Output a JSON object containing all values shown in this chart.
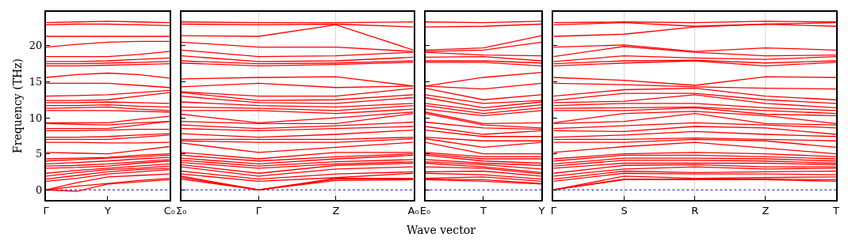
{
  "chart_data": [
    {
      "type": "line",
      "ylabel": "Frequency (THz)",
      "categories": [
        "Γ",
        null,
        "Y",
        null,
        "C₀"
      ],
      "ylim": [
        -1.4,
        24.7
      ],
      "yticks": [
        0,
        5,
        10,
        15,
        20
      ],
      "ref_lines": [
        {
          "axis": "y",
          "value": 0,
          "color": "#0000ff",
          "line_style": "dotted"
        }
      ],
      "series": [
        {
          "color": "#ff0000",
          "values": [
            0,
            -0.2,
            0.8,
            1.1,
            1.4
          ]
        },
        {
          "color": "#ff0000",
          "values": [
            0,
            0.5,
            0.9,
            1.3,
            1.6
          ]
        },
        {
          "color": "#ff0000",
          "values": [
            0,
            1.0,
            1.8,
            2.0,
            2.2
          ]
        },
        {
          "color": "#ff0000",
          "values": [
            1.2,
            1.6,
            2.2,
            2.5,
            2.8
          ]
        },
        {
          "color": "#ff0000",
          "values": [
            1.5,
            2.0,
            2.5,
            2.8,
            3.0
          ]
        },
        {
          "color": "#ff0000",
          "values": [
            1.9,
            2.4,
            2.8,
            3.0,
            3.3
          ]
        },
        {
          "color": "#ff0000",
          "values": [
            2.3,
            2.7,
            3.0,
            3.3,
            3.6
          ]
        },
        {
          "color": "#ff0000",
          "values": [
            3.0,
            3.1,
            3.3,
            3.7,
            4.0
          ]
        },
        {
          "color": "#ff0000",
          "values": [
            3.3,
            3.4,
            3.6,
            3.9,
            4.2
          ]
        },
        {
          "color": "#ff0000",
          "values": [
            3.6,
            3.8,
            4.0,
            4.3,
            4.5
          ]
        },
        {
          "color": "#ff0000",
          "values": [
            4.0,
            4.2,
            4.4,
            4.6,
            4.8
          ]
        },
        {
          "color": "#ff0000",
          "values": [
            4.3,
            4.4,
            4.5,
            4.8,
            5.0
          ]
        },
        {
          "color": "#ff0000",
          "values": [
            5.2,
            5.1,
            5.0,
            5.5,
            6.0
          ]
        },
        {
          "color": "#ff0000",
          "values": [
            6.6,
            6.6,
            6.5,
            6.5,
            6.6
          ]
        },
        {
          "color": "#ff0000",
          "values": [
            7.0,
            7.0,
            7.0,
            7.3,
            7.6
          ]
        },
        {
          "color": "#ff0000",
          "values": [
            7.3,
            7.3,
            7.4,
            7.6,
            7.8
          ]
        },
        {
          "color": "#ff0000",
          "values": [
            8.2,
            8.2,
            8.3,
            8.4,
            8.4
          ]
        },
        {
          "color": "#ff0000",
          "values": [
            8.5,
            8.5,
            8.5,
            9.0,
            9.5
          ]
        },
        {
          "color": "#ff0000",
          "values": [
            9.2,
            9.1,
            9.0,
            9.3,
            9.5
          ]
        },
        {
          "color": "#ff0000",
          "values": [
            9.3,
            9.3,
            9.3,
            9.8,
            10.2
          ]
        },
        {
          "color": "#ff0000",
          "values": [
            11.0,
            11.0,
            11.0,
            10.9,
            10.8
          ]
        },
        {
          "color": "#ff0000",
          "values": [
            11.3,
            11.4,
            11.5,
            11.2,
            11.0
          ]
        },
        {
          "color": "#ff0000",
          "values": [
            11.7,
            11.7,
            11.8,
            11.6,
            11.5
          ]
        },
        {
          "color": "#ff0000",
          "values": [
            12.1,
            12.1,
            12.2,
            12.1,
            12.0
          ]
        },
        {
          "color": "#ff0000",
          "values": [
            12.4,
            12.4,
            12.5,
            13.0,
            13.5
          ]
        },
        {
          "color": "#ff0000",
          "values": [
            13.0,
            13.1,
            13.2,
            13.5,
            13.8
          ]
        },
        {
          "color": "#ff0000",
          "values": [
            14.8,
            14.8,
            14.8,
            14.5,
            14.2
          ]
        },
        {
          "color": "#ff0000",
          "values": [
            15.6,
            16.0,
            16.2,
            16.0,
            15.5
          ]
        },
        {
          "color": "#ff0000",
          "values": [
            17.2,
            17.2,
            17.3,
            17.4,
            17.5
          ]
        },
        {
          "color": "#ff0000",
          "values": [
            17.5,
            17.5,
            17.6,
            17.7,
            17.8
          ]
        },
        {
          "color": "#ff0000",
          "values": [
            17.8,
            17.8,
            17.9,
            18.1,
            18.3
          ]
        },
        {
          "color": "#ff0000",
          "values": [
            18.5,
            18.5,
            18.5,
            18.8,
            19.2
          ]
        },
        {
          "color": "#ff0000",
          "values": [
            19.8,
            20.2,
            20.5,
            20.6,
            20.6
          ]
        },
        {
          "color": "#ff0000",
          "values": [
            21.3,
            21.3,
            21.3,
            21.3,
            21.3
          ]
        },
        {
          "color": "#ff0000",
          "values": [
            22.9,
            23.0,
            23.0,
            22.9,
            22.8
          ]
        },
        {
          "color": "#ff0000",
          "values": [
            23.2,
            23.3,
            23.4,
            23.3,
            23.2
          ]
        }
      ]
    },
    {
      "type": "line",
      "xlabel": "Wave vector",
      "categories": [
        "Σ₀",
        "Γ",
        "Z",
        "A₀"
      ],
      "ylim": [
        -1.4,
        24.7
      ],
      "yticks": [
        0,
        5,
        10,
        15,
        20
      ],
      "grid": "x",
      "tick_labels": "x",
      "ref_lines": [
        {
          "axis": "y",
          "value": 0,
          "color": "#0000ff",
          "line_style": "dotted"
        }
      ],
      "series": [
        {
          "color": "#ff0000",
          "values": [
            1.5,
            0,
            1.3,
            1.4
          ]
        },
        {
          "color": "#ff0000",
          "values": [
            1.7,
            0,
            1.5,
            1.5
          ]
        },
        {
          "color": "#ff0000",
          "values": [
            1.9,
            0,
            1.6,
            1.6
          ]
        },
        {
          "color": "#ff0000",
          "values": [
            2.2,
            1.2,
            1.7,
            2.3
          ]
        },
        {
          "color": "#ff0000",
          "values": [
            2.6,
            1.5,
            2.2,
            2.5
          ]
        },
        {
          "color": "#ff0000",
          "values": [
            3.2,
            1.9,
            2.9,
            3.2
          ]
        },
        {
          "color": "#ff0000",
          "values": [
            3.5,
            2.3,
            3.4,
            3.7
          ]
        },
        {
          "color": "#ff0000",
          "values": [
            3.8,
            3.0,
            3.6,
            3.9
          ]
        },
        {
          "color": "#ff0000",
          "values": [
            4.1,
            3.3,
            3.9,
            4.2
          ]
        },
        {
          "color": "#ff0000",
          "values": [
            4.4,
            3.6,
            4.3,
            4.8
          ]
        },
        {
          "color": "#ff0000",
          "values": [
            4.8,
            4.0,
            4.6,
            5.0
          ]
        },
        {
          "color": "#ff0000",
          "values": [
            5.2,
            4.3,
            5.2,
            5.2
          ]
        },
        {
          "color": "#ff0000",
          "values": [
            6.5,
            5.2,
            5.9,
            6.6
          ]
        },
        {
          "color": "#ff0000",
          "values": [
            6.8,
            6.6,
            6.6,
            7.1
          ]
        },
        {
          "color": "#ff0000",
          "values": [
            7.0,
            7.0,
            7.0,
            7.3
          ]
        },
        {
          "color": "#ff0000",
          "values": [
            7.8,
            7.3,
            7.7,
            8.3
          ]
        },
        {
          "color": "#ff0000",
          "values": [
            8.5,
            8.2,
            8.5,
            8.8
          ]
        },
        {
          "color": "#ff0000",
          "values": [
            9.0,
            8.5,
            8.9,
            9.4
          ]
        },
        {
          "color": "#ff0000",
          "values": [
            9.5,
            9.2,
            9.2,
            10.6
          ]
        },
        {
          "color": "#ff0000",
          "values": [
            10.5,
            9.3,
            10.0,
            10.8
          ]
        },
        {
          "color": "#ff0000",
          "values": [
            11.0,
            11.0,
            10.6,
            11.2
          ]
        },
        {
          "color": "#ff0000",
          "values": [
            11.5,
            11.3,
            11.0,
            11.7
          ]
        },
        {
          "color": "#ff0000",
          "values": [
            12.2,
            11.7,
            11.5,
            12.0
          ]
        },
        {
          "color": "#ff0000",
          "values": [
            13.0,
            12.1,
            12.0,
            12.8
          ]
        },
        {
          "color": "#ff0000",
          "values": [
            13.5,
            12.4,
            12.5,
            13.2
          ]
        },
        {
          "color": "#ff0000",
          "values": [
            13.6,
            13.0,
            13.0,
            14.1
          ]
        },
        {
          "color": "#ff0000",
          "values": [
            14.3,
            14.8,
            14.2,
            14.4
          ]
        },
        {
          "color": "#ff0000",
          "values": [
            15.4,
            15.6,
            15.7,
            14.4
          ]
        },
        {
          "color": "#ff0000",
          "values": [
            17.6,
            17.2,
            17.4,
            17.7
          ]
        },
        {
          "color": "#ff0000",
          "values": [
            17.9,
            17.5,
            17.6,
            17.9
          ]
        },
        {
          "color": "#ff0000",
          "values": [
            18.6,
            17.8,
            17.9,
            18.4
          ]
        },
        {
          "color": "#ff0000",
          "values": [
            19.4,
            18.5,
            18.6,
            19.1
          ]
        },
        {
          "color": "#ff0000",
          "values": [
            20.5,
            19.8,
            19.8,
            19.2
          ]
        },
        {
          "color": "#ff0000",
          "values": [
            21.4,
            21.3,
            22.9,
            19.4
          ]
        },
        {
          "color": "#ff0000",
          "values": [
            23.0,
            22.9,
            23.0,
            22.6
          ]
        },
        {
          "color": "#ff0000",
          "values": [
            23.3,
            23.2,
            23.2,
            23.3
          ]
        }
      ]
    },
    {
      "type": "line",
      "categories": [
        "E₀",
        "T",
        "Y"
      ],
      "ylim": [
        -1.4,
        24.7
      ],
      "yticks": [
        0,
        5,
        10,
        15,
        20
      ],
      "tick_labels": "x",
      "ref_lines": [
        {
          "axis": "y",
          "value": 0,
          "color": "#0000ff",
          "line_style": "dotted"
        }
      ],
      "series": [
        {
          "color": "#ff0000",
          "values": [
            1.4,
            1.2,
            0.8
          ]
        },
        {
          "color": "#ff0000",
          "values": [
            1.5,
            1.4,
            0.9
          ]
        },
        {
          "color": "#ff0000",
          "values": [
            1.6,
            1.8,
            1.2
          ]
        },
        {
          "color": "#ff0000",
          "values": [
            2.3,
            2.1,
            1.5
          ]
        },
        {
          "color": "#ff0000",
          "values": [
            2.5,
            2.6,
            1.9
          ]
        },
        {
          "color": "#ff0000",
          "values": [
            3.2,
            3.0,
            2.2
          ]
        },
        {
          "color": "#ff0000",
          "values": [
            3.7,
            3.2,
            2.4
          ]
        },
        {
          "color": "#ff0000",
          "values": [
            3.9,
            3.5,
            2.9
          ]
        },
        {
          "color": "#ff0000",
          "values": [
            4.2,
            3.7,
            3.4
          ]
        },
        {
          "color": "#ff0000",
          "values": [
            4.8,
            4.0,
            3.7
          ]
        },
        {
          "color": "#ff0000",
          "values": [
            5.0,
            4.3,
            4.3
          ]
        },
        {
          "color": "#ff0000",
          "values": [
            5.2,
            4.6,
            4.6
          ]
        },
        {
          "color": "#ff0000",
          "values": [
            6.6,
            5.0,
            5.0
          ]
        },
        {
          "color": "#ff0000",
          "values": [
            7.1,
            5.9,
            6.6
          ]
        },
        {
          "color": "#ff0000",
          "values": [
            7.3,
            6.8,
            6.8
          ]
        },
        {
          "color": "#ff0000",
          "values": [
            8.3,
            7.4,
            7.4
          ]
        },
        {
          "color": "#ff0000",
          "values": [
            8.8,
            7.7,
            8.2
          ]
        },
        {
          "color": "#ff0000",
          "values": [
            9.4,
            8.6,
            8.4
          ]
        },
        {
          "color": "#ff0000",
          "values": [
            10.6,
            9.0,
            8.6
          ]
        },
        {
          "color": "#ff0000",
          "values": [
            10.8,
            9.2,
            9.3
          ]
        },
        {
          "color": "#ff0000",
          "values": [
            11.2,
            10.3,
            11.0
          ]
        },
        {
          "color": "#ff0000",
          "values": [
            11.7,
            10.6,
            11.4
          ]
        },
        {
          "color": "#ff0000",
          "values": [
            12.0,
            11.0,
            11.8
          ]
        },
        {
          "color": "#ff0000",
          "values": [
            12.8,
            11.4,
            12.2
          ]
        },
        {
          "color": "#ff0000",
          "values": [
            13.2,
            12.0,
            12.4
          ]
        },
        {
          "color": "#ff0000",
          "values": [
            14.1,
            12.5,
            13.2
          ]
        },
        {
          "color": "#ff0000",
          "values": [
            14.4,
            14.0,
            14.8
          ]
        },
        {
          "color": "#ff0000",
          "values": [
            14.4,
            15.6,
            16.3
          ]
        },
        {
          "color": "#ff0000",
          "values": [
            17.7,
            17.7,
            17.2
          ]
        },
        {
          "color": "#ff0000",
          "values": [
            17.9,
            17.9,
            17.6
          ]
        },
        {
          "color": "#ff0000",
          "values": [
            18.4,
            18.5,
            17.9
          ]
        },
        {
          "color": "#ff0000",
          "values": [
            19.1,
            18.7,
            18.6
          ]
        },
        {
          "color": "#ff0000",
          "values": [
            19.2,
            19.4,
            20.5
          ]
        },
        {
          "color": "#ff0000",
          "values": [
            19.4,
            19.7,
            21.4
          ]
        },
        {
          "color": "#ff0000",
          "values": [
            22.6,
            22.7,
            23.0
          ]
        },
        {
          "color": "#ff0000",
          "values": [
            23.3,
            23.2,
            23.4
          ]
        }
      ]
    },
    {
      "type": "line",
      "categories": [
        "Γ",
        "S",
        "R",
        "Z",
        "T"
      ],
      "ylim": [
        -1.4,
        24.7
      ],
      "yticks": [
        0,
        5,
        10,
        15,
        20
      ],
      "grid": "x",
      "tick_labels": "x",
      "ref_lines": [
        {
          "axis": "y",
          "value": 0,
          "color": "#0000ff",
          "line_style": "dotted"
        }
      ],
      "series": [
        {
          "color": "#ff0000",
          "values": [
            0,
            1.4,
            1.4,
            1.4,
            1.2
          ]
        },
        {
          "color": "#ff0000",
          "values": [
            0,
            1.5,
            1.5,
            1.5,
            1.4
          ]
        },
        {
          "color": "#ff0000",
          "values": [
            0,
            1.9,
            1.6,
            1.7,
            1.8
          ]
        },
        {
          "color": "#ff0000",
          "values": [
            1.2,
            2.3,
            2.2,
            2.2,
            2.1
          ]
        },
        {
          "color": "#ff0000",
          "values": [
            1.5,
            2.6,
            2.4,
            2.5,
            2.6
          ]
        },
        {
          "color": "#ff0000",
          "values": [
            1.9,
            2.9,
            3.2,
            2.9,
            3.0
          ]
        },
        {
          "color": "#ff0000",
          "values": [
            2.3,
            3.4,
            3.5,
            3.2,
            3.2
          ]
        },
        {
          "color": "#ff0000",
          "values": [
            3.0,
            3.7,
            3.7,
            3.7,
            3.5
          ]
        },
        {
          "color": "#ff0000",
          "values": [
            3.3,
            4.1,
            4.1,
            4.0,
            3.7
          ]
        },
        {
          "color": "#ff0000",
          "values": [
            3.6,
            4.4,
            4.4,
            4.3,
            4.0
          ]
        },
        {
          "color": "#ff0000",
          "values": [
            4.0,
            4.8,
            4.8,
            4.6,
            4.3
          ]
        },
        {
          "color": "#ff0000",
          "values": [
            4.3,
            5.0,
            5.2,
            5.0,
            4.6
          ]
        },
        {
          "color": "#ff0000",
          "values": [
            5.2,
            6.0,
            6.6,
            5.8,
            5.0
          ]
        },
        {
          "color": "#ff0000",
          "values": [
            6.6,
            6.6,
            7.0,
            6.8,
            5.9
          ]
        },
        {
          "color": "#ff0000",
          "values": [
            7.0,
            7.0,
            7.2,
            7.0,
            6.8
          ]
        },
        {
          "color": "#ff0000",
          "values": [
            7.3,
            7.6,
            8.1,
            7.7,
            7.4
          ]
        },
        {
          "color": "#ff0000",
          "values": [
            8.2,
            8.1,
            8.8,
            8.6,
            7.7
          ]
        },
        {
          "color": "#ff0000",
          "values": [
            8.5,
            8.9,
            9.3,
            9.0,
            8.6
          ]
        },
        {
          "color": "#ff0000",
          "values": [
            9.2,
            9.5,
            10.6,
            9.2,
            9.0
          ]
        },
        {
          "color": "#ff0000",
          "values": [
            9.3,
            10.6,
            10.9,
            10.3,
            9.2
          ]
        },
        {
          "color": "#ff0000",
          "values": [
            11.0,
            11.0,
            11.4,
            10.5,
            10.3
          ]
        },
        {
          "color": "#ff0000",
          "values": [
            11.3,
            11.4,
            11.5,
            11.0,
            10.6
          ]
        },
        {
          "color": "#ff0000",
          "values": [
            11.7,
            12.0,
            12.0,
            11.4,
            11.0
          ]
        },
        {
          "color": "#ff0000",
          "values": [
            12.1,
            12.3,
            13.2,
            12.0,
            11.4
          ]
        },
        {
          "color": "#ff0000",
          "values": [
            12.4,
            13.4,
            13.4,
            12.5,
            12.0
          ]
        },
        {
          "color": "#ff0000",
          "values": [
            13.0,
            13.9,
            14.1,
            13.0,
            12.5
          ]
        },
        {
          "color": "#ff0000",
          "values": [
            14.8,
            14.6,
            14.3,
            14.1,
            14.0
          ]
        },
        {
          "color": "#ff0000",
          "values": [
            15.6,
            15.2,
            14.5,
            15.7,
            15.6
          ]
        },
        {
          "color": "#ff0000",
          "values": [
            17.2,
            17.6,
            17.9,
            17.2,
            17.7
          ]
        },
        {
          "color": "#ff0000",
          "values": [
            17.5,
            17.9,
            18.0,
            17.6,
            17.9
          ]
        },
        {
          "color": "#ff0000",
          "values": [
            17.8,
            18.6,
            18.3,
            18.1,
            18.5
          ]
        },
        {
          "color": "#ff0000",
          "values": [
            18.5,
            19.9,
            19.1,
            18.6,
            18.7
          ]
        },
        {
          "color": "#ff0000",
          "values": [
            19.8,
            20.1,
            19.2,
            19.7,
            19.4
          ]
        },
        {
          "color": "#ff0000",
          "values": [
            21.3,
            21.6,
            22.6,
            23.0,
            22.7
          ]
        },
        {
          "color": "#ff0000",
          "values": [
            22.9,
            23.2,
            22.7,
            23.0,
            23.2
          ]
        },
        {
          "color": "#ff0000",
          "values": [
            23.2,
            23.3,
            23.2,
            23.4,
            23.3
          ]
        }
      ]
    }
  ]
}
